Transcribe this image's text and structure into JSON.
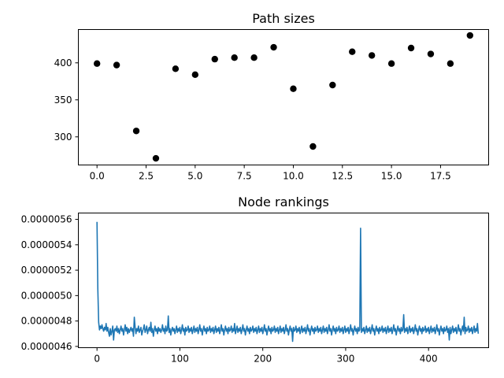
{
  "chart_data": [
    {
      "type": "scatter",
      "title": "Path sizes",
      "xlabel": "",
      "ylabel": "",
      "xlim": [
        -0.95,
        19.95
      ],
      "ylim": [
        262,
        445
      ],
      "xticks": [
        0.0,
        2.5,
        5.0,
        7.5,
        10.0,
        12.5,
        15.0,
        17.5
      ],
      "xtick_labels": [
        "0.0",
        "2.5",
        "5.0",
        "7.5",
        "10.0",
        "12.5",
        "15.0",
        "17.5"
      ],
      "yticks": [
        300,
        350,
        400
      ],
      "ytick_labels": [
        "300",
        "350",
        "400"
      ],
      "grid": false,
      "color": "#000000",
      "x": [
        0,
        1,
        2,
        3,
        4,
        5,
        6,
        7,
        8,
        9,
        10,
        11,
        12,
        13,
        14,
        15,
        16,
        17,
        18,
        19
      ],
      "y": [
        399,
        397,
        308,
        271,
        392,
        384,
        405,
        407,
        407,
        421,
        365,
        287,
        370,
        415,
        410,
        399,
        420,
        412,
        399,
        437
      ]
    },
    {
      "type": "line",
      "title": "Node rankings",
      "xlabel": "",
      "ylabel": "",
      "xlim": [
        -22.5,
        472.5
      ],
      "ylim": [
        4.59e-07,
        5.65e-07
      ],
      "xticks": [
        0,
        100,
        200,
        300,
        400
      ],
      "xtick_labels": [
        "0",
        "100",
        "200",
        "300",
        "400"
      ],
      "yticks": [
        4.6e-07,
        4.8e-07,
        5e-07,
        5.2e-07,
        5.4e-07,
        5.6e-07
      ],
      "ytick_labels": [
        "0.0000046",
        "0.0000048",
        "0.0000050",
        "0.0000052",
        "0.0000054",
        "0.0000056"
      ],
      "grid": false,
      "color": "#1f77b4",
      "series": [
        {
          "x_start": 0,
          "x_step": 1,
          "values": [
            5.58e-07,
            5.05e-07,
            4.79e-07,
            4.73e-07,
            4.76e-07,
            4.74e-07,
            4.77e-07,
            4.74e-07,
            4.72e-07,
            4.75e-07,
            4.73e-07,
            4.78e-07,
            4.72e-07,
            4.75e-07,
            4.71e-07,
            4.68e-07,
            4.74e-07,
            4.69e-07,
            4.72e-07,
            4.76e-07,
            4.65e-07,
            4.73e-07,
            4.74e-07,
            4.72e-07,
            4.76e-07,
            4.71e-07,
            4.74e-07,
            4.7e-07,
            4.73e-07,
            4.76e-07,
            4.72e-07,
            4.74e-07,
            4.69e-07,
            4.73e-07,
            4.77e-07,
            4.72e-07,
            4.75e-07,
            4.7e-07,
            4.74e-07,
            4.71e-07,
            4.73e-07,
            4.75e-07,
            4.72e-07,
            4.74e-07,
            4.68e-07,
            4.83e-07,
            4.75e-07,
            4.7e-07,
            4.74e-07,
            4.72e-07,
            4.76e-07,
            4.71e-07,
            4.73e-07,
            4.75e-07,
            4.69e-07,
            4.72e-07,
            4.74e-07,
            4.77e-07,
            4.71e-07,
            4.73e-07,
            4.76e-07,
            4.7e-07,
            4.73e-07,
            4.75e-07,
            4.72e-07,
            4.79e-07,
            4.71e-07,
            4.74e-07,
            4.68e-07,
            4.73e-07,
            4.76e-07,
            4.72e-07,
            4.74e-07,
            4.7e-07,
            4.75e-07,
            4.72e-07,
            4.74e-07,
            4.71e-07,
            4.73e-07,
            4.77e-07,
            4.72e-07,
            4.74e-07,
            4.7e-07,
            4.76e-07,
            4.72e-07,
            4.73e-07,
            4.84e-07,
            4.71e-07,
            4.74e-07,
            4.69e-07,
            4.73e-07,
            4.75e-07,
            4.72e-07,
            4.74e-07,
            4.7e-07,
            4.73e-07,
            4.76e-07,
            4.71e-07,
            4.74e-07,
            4.72e-07,
            4.75e-07,
            4.7e-07,
            4.73e-07,
            4.77e-07,
            4.72e-07,
            4.74e-07,
            4.69e-07,
            4.75e-07,
            4.72e-07,
            4.73e-07,
            4.76e-07,
            4.71e-07,
            4.74e-07,
            4.72e-07,
            4.75e-07,
            4.7e-07,
            4.73e-07,
            4.76e-07,
            4.71e-07,
            4.74e-07,
            4.72e-07,
            4.75e-07,
            4.7e-07,
            4.73e-07,
            4.77e-07,
            4.72e-07,
            4.74e-07,
            4.69e-07,
            4.73e-07,
            4.76e-07,
            4.72e-07,
            4.74e-07,
            4.7e-07,
            4.75e-07,
            4.72e-07,
            4.73e-07,
            4.76e-07,
            4.71e-07,
            4.74e-07,
            4.72e-07,
            4.75e-07,
            4.7e-07,
            4.73e-07,
            4.76e-07,
            4.71e-07,
            4.74e-07,
            4.72e-07,
            4.75e-07,
            4.7e-07,
            4.73e-07,
            4.77e-07,
            4.72e-07,
            4.74e-07,
            4.69e-07,
            4.73e-07,
            4.76e-07,
            4.72e-07,
            4.74e-07,
            4.7e-07,
            4.75e-07,
            4.72e-07,
            4.73e-07,
            4.76e-07,
            4.71e-07,
            4.74e-07,
            4.72e-07,
            4.78e-07,
            4.7e-07,
            4.73e-07,
            4.76e-07,
            4.71e-07,
            4.74e-07,
            4.72e-07,
            4.75e-07,
            4.7e-07,
            4.73e-07,
            4.77e-07,
            4.72e-07,
            4.74e-07,
            4.69e-07,
            4.73e-07,
            4.76e-07,
            4.72e-07,
            4.74e-07,
            4.7e-07,
            4.75e-07,
            4.72e-07,
            4.73e-07,
            4.76e-07,
            4.71e-07,
            4.74e-07,
            4.72e-07,
            4.75e-07,
            4.7e-07,
            4.73e-07,
            4.76e-07,
            4.71e-07,
            4.74e-07,
            4.72e-07,
            4.75e-07,
            4.7e-07,
            4.73e-07,
            4.77e-07,
            4.72e-07,
            4.74e-07,
            4.69e-07,
            4.73e-07,
            4.76e-07,
            4.72e-07,
            4.74e-07,
            4.7e-07,
            4.75e-07,
            4.72e-07,
            4.73e-07,
            4.76e-07,
            4.71e-07,
            4.74e-07,
            4.72e-07,
            4.75e-07,
            4.7e-07,
            4.73e-07,
            4.76e-07,
            4.71e-07,
            4.74e-07,
            4.72e-07,
            4.75e-07,
            4.7e-07,
            4.73e-07,
            4.77e-07,
            4.72e-07,
            4.74e-07,
            4.69e-07,
            4.73e-07,
            4.76e-07,
            4.72e-07,
            4.74e-07,
            4.64e-07,
            4.75e-07,
            4.72e-07,
            4.73e-07,
            4.76e-07,
            4.71e-07,
            4.74e-07,
            4.72e-07,
            4.75e-07,
            4.7e-07,
            4.73e-07,
            4.76e-07,
            4.71e-07,
            4.74e-07,
            4.72e-07,
            4.75e-07,
            4.7e-07,
            4.73e-07,
            4.77e-07,
            4.72e-07,
            4.74e-07,
            4.69e-07,
            4.73e-07,
            4.76e-07,
            4.72e-07,
            4.74e-07,
            4.7e-07,
            4.75e-07,
            4.72e-07,
            4.73e-07,
            4.76e-07,
            4.71e-07,
            4.74e-07,
            4.72e-07,
            4.75e-07,
            4.7e-07,
            4.73e-07,
            4.76e-07,
            4.71e-07,
            4.74e-07,
            4.72e-07,
            4.75e-07,
            4.7e-07,
            4.73e-07,
            4.77e-07,
            4.72e-07,
            4.74e-07,
            4.69e-07,
            4.73e-07,
            4.76e-07,
            4.72e-07,
            4.74e-07,
            4.7e-07,
            4.75e-07,
            4.72e-07,
            4.73e-07,
            4.76e-07,
            4.71e-07,
            4.74e-07,
            4.72e-07,
            4.75e-07,
            4.7e-07,
            4.73e-07,
            4.76e-07,
            4.71e-07,
            4.74e-07,
            4.72e-07,
            4.75e-07,
            4.7e-07,
            4.73e-07,
            4.77e-07,
            4.72e-07,
            4.74e-07,
            4.69e-07,
            4.73e-07,
            4.76e-07,
            4.72e-07,
            4.74e-07,
            4.7e-07,
            4.75e-07,
            4.72e-07,
            4.73e-07,
            5.53e-07,
            4.71e-07,
            4.74e-07,
            4.72e-07,
            4.75e-07,
            4.7e-07,
            4.73e-07,
            4.76e-07,
            4.71e-07,
            4.74e-07,
            4.72e-07,
            4.75e-07,
            4.7e-07,
            4.73e-07,
            4.77e-07,
            4.72e-07,
            4.74e-07,
            4.69e-07,
            4.73e-07,
            4.76e-07,
            4.72e-07,
            4.74e-07,
            4.7e-07,
            4.75e-07,
            4.72e-07,
            4.73e-07,
            4.76e-07,
            4.71e-07,
            4.74e-07,
            4.72e-07,
            4.75e-07,
            4.7e-07,
            4.73e-07,
            4.76e-07,
            4.71e-07,
            4.74e-07,
            4.72e-07,
            4.75e-07,
            4.7e-07,
            4.73e-07,
            4.77e-07,
            4.72e-07,
            4.74e-07,
            4.69e-07,
            4.73e-07,
            4.76e-07,
            4.72e-07,
            4.74e-07,
            4.7e-07,
            4.75e-07,
            4.72e-07,
            4.73e-07,
            4.85e-07,
            4.71e-07,
            4.74e-07,
            4.72e-07,
            4.75e-07,
            4.7e-07,
            4.73e-07,
            4.76e-07,
            4.71e-07,
            4.74e-07,
            4.72e-07,
            4.75e-07,
            4.7e-07,
            4.73e-07,
            4.77e-07,
            4.72e-07,
            4.74e-07,
            4.69e-07,
            4.73e-07,
            4.76e-07,
            4.72e-07,
            4.74e-07,
            4.7e-07,
            4.75e-07,
            4.72e-07,
            4.73e-07,
            4.76e-07,
            4.71e-07,
            4.74e-07,
            4.72e-07,
            4.75e-07,
            4.7e-07,
            4.73e-07,
            4.76e-07,
            4.71e-07,
            4.74e-07,
            4.72e-07,
            4.75e-07,
            4.7e-07,
            4.73e-07,
            4.77e-07,
            4.72e-07,
            4.74e-07,
            4.69e-07,
            4.73e-07,
            4.76e-07,
            4.72e-07,
            4.74e-07,
            4.7e-07,
            4.75e-07,
            4.72e-07,
            4.73e-07,
            4.76e-07,
            4.71e-07,
            4.74e-07,
            4.65e-07,
            4.75e-07,
            4.7e-07,
            4.73e-07,
            4.76e-07,
            4.71e-07,
            4.74e-07,
            4.72e-07,
            4.75e-07,
            4.7e-07,
            4.73e-07,
            4.77e-07,
            4.72e-07,
            4.74e-07,
            4.69e-07,
            4.73e-07,
            4.76e-07,
            4.72e-07,
            4.83e-07,
            4.7e-07,
            4.75e-07,
            4.72e-07,
            4.73e-07,
            4.76e-07,
            4.71e-07,
            4.74e-07,
            4.72e-07,
            4.75e-07,
            4.7e-07,
            4.73e-07,
            4.76e-07,
            4.71e-07,
            4.74e-07,
            4.72e-07,
            4.78e-07,
            4.7e-07
          ]
        }
      ]
    }
  ]
}
